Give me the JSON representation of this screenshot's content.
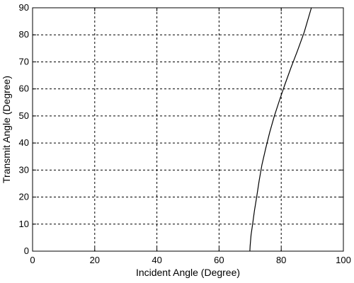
{
  "chart_data": {
    "type": "line",
    "title": "",
    "xlabel": "Incident Angle (Degree)",
    "ylabel": "Transmit Angle (Degree)",
    "xlim": [
      0,
      100
    ],
    "ylim": [
      0,
      90
    ],
    "xticks": [
      "0",
      "20",
      "40",
      "60",
      "80",
      "100"
    ],
    "yticks": [
      "0",
      "10",
      "20",
      "30",
      "40",
      "50",
      "60",
      "70",
      "80",
      "90"
    ],
    "grid": true,
    "grid_style": "dashed",
    "series": [
      {
        "color": "#000000",
        "x": [
          69.9,
          70.0,
          70.3,
          70.8,
          71.4,
          72.1,
          72.9,
          73.8,
          75.0,
          76.3,
          77.8,
          79.5,
          81.3,
          83.2,
          85.2,
          87.4,
          89.7
        ],
        "y": [
          0,
          2,
          6,
          10,
          15,
          20,
          26,
          32,
          38,
          44,
          50,
          56,
          62,
          68,
          74,
          81,
          90
        ]
      }
    ]
  }
}
